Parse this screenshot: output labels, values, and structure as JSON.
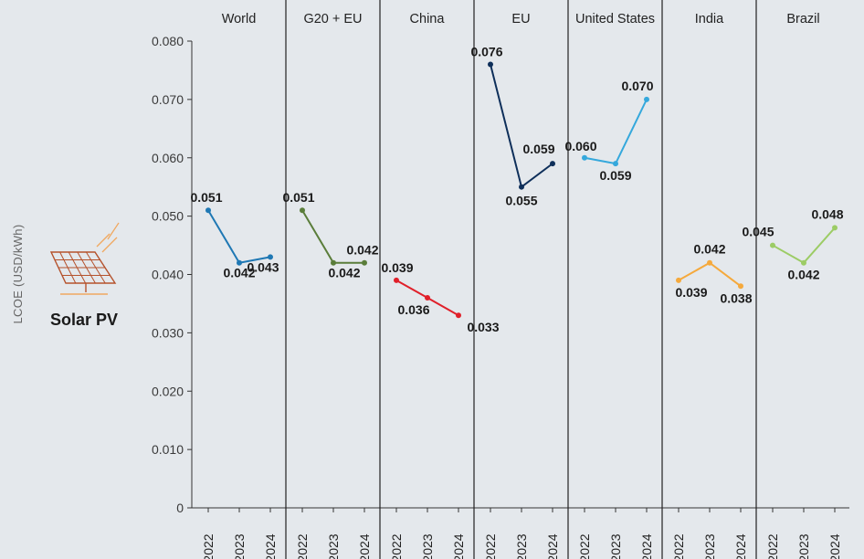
{
  "chart_data": {
    "type": "line",
    "ylabel": "LCOE (USD/kWh)",
    "technology": "Solar PV",
    "icon": "solar-panel-icon",
    "ylim": [
      0,
      0.08
    ],
    "yticks": [
      "0",
      "0.010",
      "0.020",
      "0.030",
      "0.040",
      "0.050",
      "0.060",
      "0.070",
      "0.080"
    ],
    "ytick_values": [
      0,
      0.01,
      0.02,
      0.03,
      0.04,
      0.05,
      0.06,
      0.07,
      0.08
    ],
    "x": [
      "2022",
      "2023",
      "2024"
    ],
    "grid": false,
    "series": [
      {
        "name": "World",
        "color": "#1f78b4",
        "values": [
          0.051,
          0.042,
          0.043
        ],
        "labels": [
          "0.051",
          "0.042",
          "0.043"
        ]
      },
      {
        "name": "G20 + EU",
        "color": "#5a7d3a",
        "values": [
          0.051,
          0.042,
          0.042
        ],
        "labels": [
          "0.051",
          "0.042",
          "0.042"
        ]
      },
      {
        "name": "China",
        "color": "#e0202a",
        "values": [
          0.039,
          0.036,
          0.033
        ],
        "labels": [
          "0.039",
          "0.036",
          "0.033"
        ]
      },
      {
        "name": "EU",
        "color": "#0e2f5a",
        "values": [
          0.076,
          0.055,
          0.059
        ],
        "labels": [
          "0.076",
          "0.055",
          "0.059"
        ]
      },
      {
        "name": "United States",
        "color": "#35a8dc",
        "values": [
          0.06,
          0.059,
          0.07
        ],
        "labels": [
          "0.060",
          "0.059",
          "0.070"
        ]
      },
      {
        "name": "India",
        "color": "#f5a93c",
        "values": [
          0.039,
          0.042,
          0.038
        ],
        "labels": [
          "0.039",
          "0.042",
          "0.038"
        ]
      },
      {
        "name": "Brazil",
        "color": "#9ccc65",
        "values": [
          0.045,
          0.042,
          0.048
        ],
        "labels": [
          "0.045",
          "0.042",
          "0.048"
        ]
      }
    ]
  }
}
